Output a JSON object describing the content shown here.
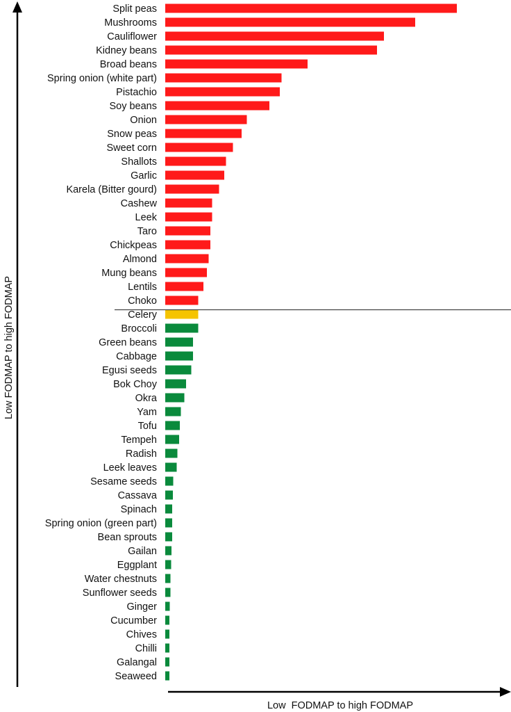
{
  "chart_data": {
    "type": "bar",
    "orientation": "horizontal",
    "xlabel": "Low  FODMAP to high FODMAP",
    "ylabel": "Low FODMAP to high FODMAP",
    "xlim": [
      0,
      100
    ],
    "grid": false,
    "legend": "none",
    "divider_after_category": "Choko",
    "colors": {
      "high": "#ff1a1a",
      "moderate": "#f5c400",
      "low": "#0a8a3c"
    },
    "categories": [
      "Split peas",
      "Mushrooms",
      "Cauliflower",
      "Kidney beans",
      "Broad beans",
      "Spring onion (white part)",
      "Pistachio",
      "Soy beans",
      "Onion",
      "Snow peas",
      "Sweet corn",
      "Shallots",
      "Garlic",
      "Karela (Bitter gourd)",
      "Cashew",
      "Leek",
      "Taro",
      "Chickpeas",
      "Almond",
      "Mung beans",
      "Lentils",
      "Choko",
      "Celery",
      "Broccoli",
      "Green beans",
      "Cabbage",
      "Egusi seeds",
      "Bok Choy",
      "Okra",
      "Yam",
      "Tofu",
      "Tempeh",
      "Radish",
      "Leek leaves",
      "Sesame seeds",
      "Cassava",
      "Spinach",
      "Spring onion (green part)",
      "Bean sprouts",
      "Gailan",
      "Eggplant",
      "Water chestnuts",
      "Sunflower seeds",
      "Ginger",
      "Cucumber",
      "Chives",
      "Chilli",
      "Galangal",
      "Seaweed"
    ],
    "values": [
      84.0,
      72.0,
      63.0,
      61.0,
      41.0,
      33.5,
      33.0,
      30.0,
      23.5,
      22.0,
      19.5,
      17.5,
      17.0,
      15.5,
      13.5,
      13.5,
      13.0,
      13.0,
      12.5,
      12.0,
      11.0,
      9.5,
      9.5,
      9.5,
      8.0,
      8.0,
      7.5,
      6.0,
      5.5,
      4.5,
      4.2,
      4.0,
      3.5,
      3.3,
      2.3,
      2.2,
      2.0,
      2.0,
      2.0,
      1.8,
      1.7,
      1.5,
      1.5,
      1.3,
      1.2,
      1.2,
      1.2,
      1.2,
      1.2
    ],
    "levels": [
      "high",
      "high",
      "high",
      "high",
      "high",
      "high",
      "high",
      "high",
      "high",
      "high",
      "high",
      "high",
      "high",
      "high",
      "high",
      "high",
      "high",
      "high",
      "high",
      "high",
      "high",
      "high",
      "moderate",
      "low",
      "low",
      "low",
      "low",
      "low",
      "low",
      "low",
      "low",
      "low",
      "low",
      "low",
      "low",
      "low",
      "low",
      "low",
      "low",
      "low",
      "low",
      "low",
      "low",
      "low",
      "low",
      "low",
      "low",
      "low",
      "low"
    ]
  }
}
